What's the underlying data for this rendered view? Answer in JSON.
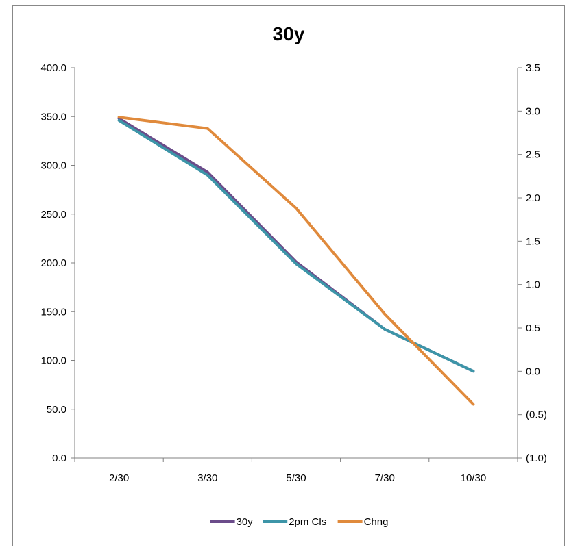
{
  "chart_data": {
    "type": "line",
    "title": "30y",
    "categories": [
      "2/30",
      "3/30",
      "5/30",
      "7/30",
      "10/30"
    ],
    "series": [
      {
        "name": "30y",
        "axis": "left",
        "color": "#6B4C8A",
        "values": [
          348,
          293,
          201,
          132,
          89
        ]
      },
      {
        "name": "2pm Cls",
        "axis": "left",
        "color": "#3D95A8",
        "values": [
          346,
          290,
          199,
          132,
          89
        ]
      },
      {
        "name": "Chng",
        "axis": "right",
        "color": "#E08A3C",
        "values": [
          2.93,
          2.8,
          1.88,
          0.66,
          -0.38
        ]
      }
    ],
    "y_left": {
      "min": 0,
      "max": 400,
      "ticks": [
        0,
        50,
        100,
        150,
        200,
        250,
        300,
        350,
        400
      ],
      "tick_labels": [
        "0.0",
        "50.0",
        "100.0",
        "150.0",
        "200.0",
        "250.0",
        "300.0",
        "350.0",
        "400.0"
      ]
    },
    "y_right": {
      "min": -1.0,
      "max": 3.5,
      "ticks": [
        -1.0,
        -0.5,
        0.0,
        0.5,
        1.0,
        1.5,
        2.0,
        2.5,
        3.0,
        3.5
      ],
      "tick_labels": [
        "(1.0)",
        "(0.5)",
        "0.0",
        "0.5",
        "1.0",
        "1.5",
        "2.0",
        "2.5",
        "3.0",
        "3.5"
      ],
      "negative_color": "#E00000"
    },
    "grid": false,
    "legend_position": "bottom"
  }
}
